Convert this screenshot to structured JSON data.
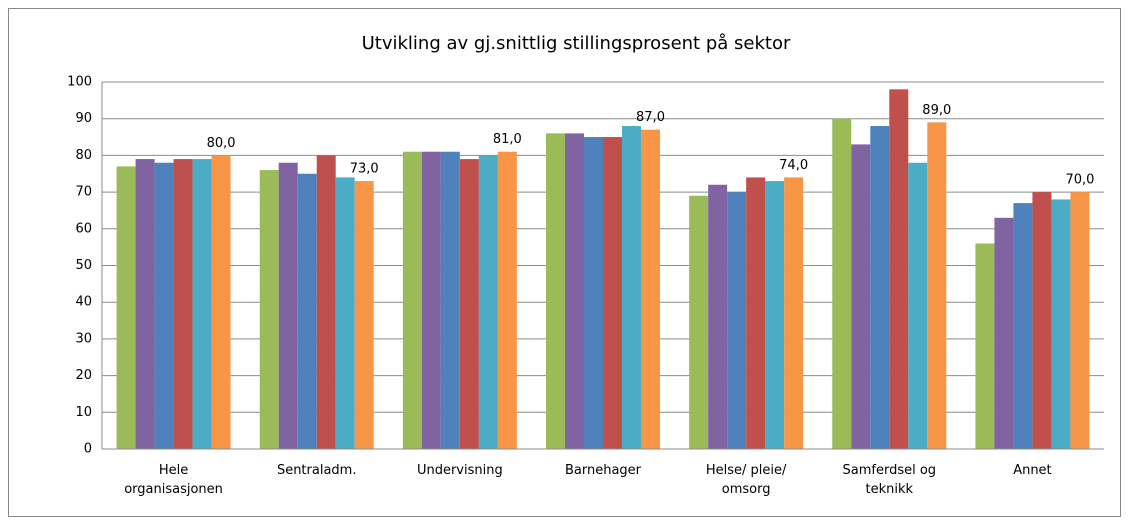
{
  "chart_data": {
    "type": "bar",
    "title": "Utvikling av gj.snittlig stillingsprosent på sektor",
    "categories": [
      "Hele\norganisasjonen",
      "Sentraladm.",
      "Undervisning",
      "Barnehager",
      "Helse/ pleie/\nomsorg",
      "Samferdsel og\nteknikk",
      "Annet"
    ],
    "series": [
      {
        "color": "#9bbb59",
        "values": [
          77,
          76,
          81,
          86,
          69,
          90,
          56
        ]
      },
      {
        "color": "#8064a2",
        "values": [
          79,
          78,
          81,
          86,
          72,
          83,
          63
        ]
      },
      {
        "color": "#4f81bd",
        "values": [
          78,
          75,
          81,
          85,
          70,
          88,
          67
        ]
      },
      {
        "color": "#c0504d",
        "values": [
          79,
          80,
          79,
          85,
          74,
          98,
          70
        ]
      },
      {
        "color": "#4bacc6",
        "values": [
          79,
          74,
          80,
          88,
          73,
          78,
          68
        ]
      },
      {
        "color": "#f79646",
        "values": [
          80,
          73,
          81,
          87,
          74,
          89,
          70
        ],
        "value_labels": [
          "80,0",
          "73,0",
          "81,0",
          "87,0",
          "74,0",
          "89,0",
          "70,0"
        ]
      }
    ],
    "ylim": [
      0,
      100
    ],
    "yticks": [
      0,
      10,
      20,
      30,
      40,
      50,
      60,
      70,
      80,
      90,
      100
    ],
    "grid": true
  }
}
